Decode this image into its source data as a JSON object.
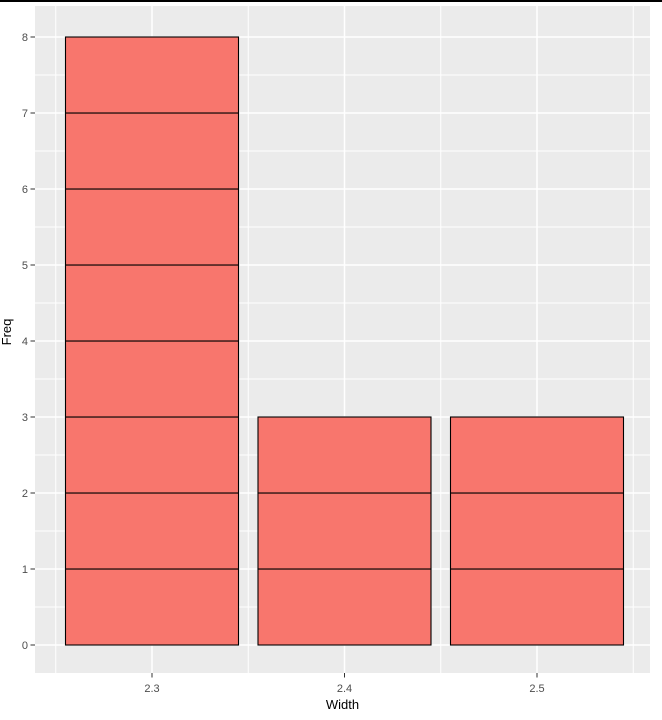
{
  "frame": {
    "top_border_color": "#000000",
    "background": "#FFFFFF"
  },
  "chart_data": {
    "type": "bar",
    "categories": [
      "2.3",
      "2.4",
      "2.5"
    ],
    "values": [
      8,
      3,
      3
    ],
    "segmented_into_unit_blocks": true,
    "xlabel": "Width",
    "ylabel": "Freq",
    "yticks": [
      "0",
      "1",
      "2",
      "3",
      "4",
      "5",
      "6",
      "7",
      "8"
    ],
    "ylim": [
      0,
      8
    ],
    "grid": "major-and-minor",
    "legend": "none",
    "style": {
      "bar_fill": "#F8766D",
      "bar_stroke": "#000000",
      "panel_background": "#EBEBEB",
      "grid_major_color": "#FFFFFF",
      "grid_minor_color": "#FFFFFF",
      "tick_mark_color": "#333333",
      "tick_label_color": "#4D4D4D",
      "axis_title_color": "#000000"
    }
  }
}
